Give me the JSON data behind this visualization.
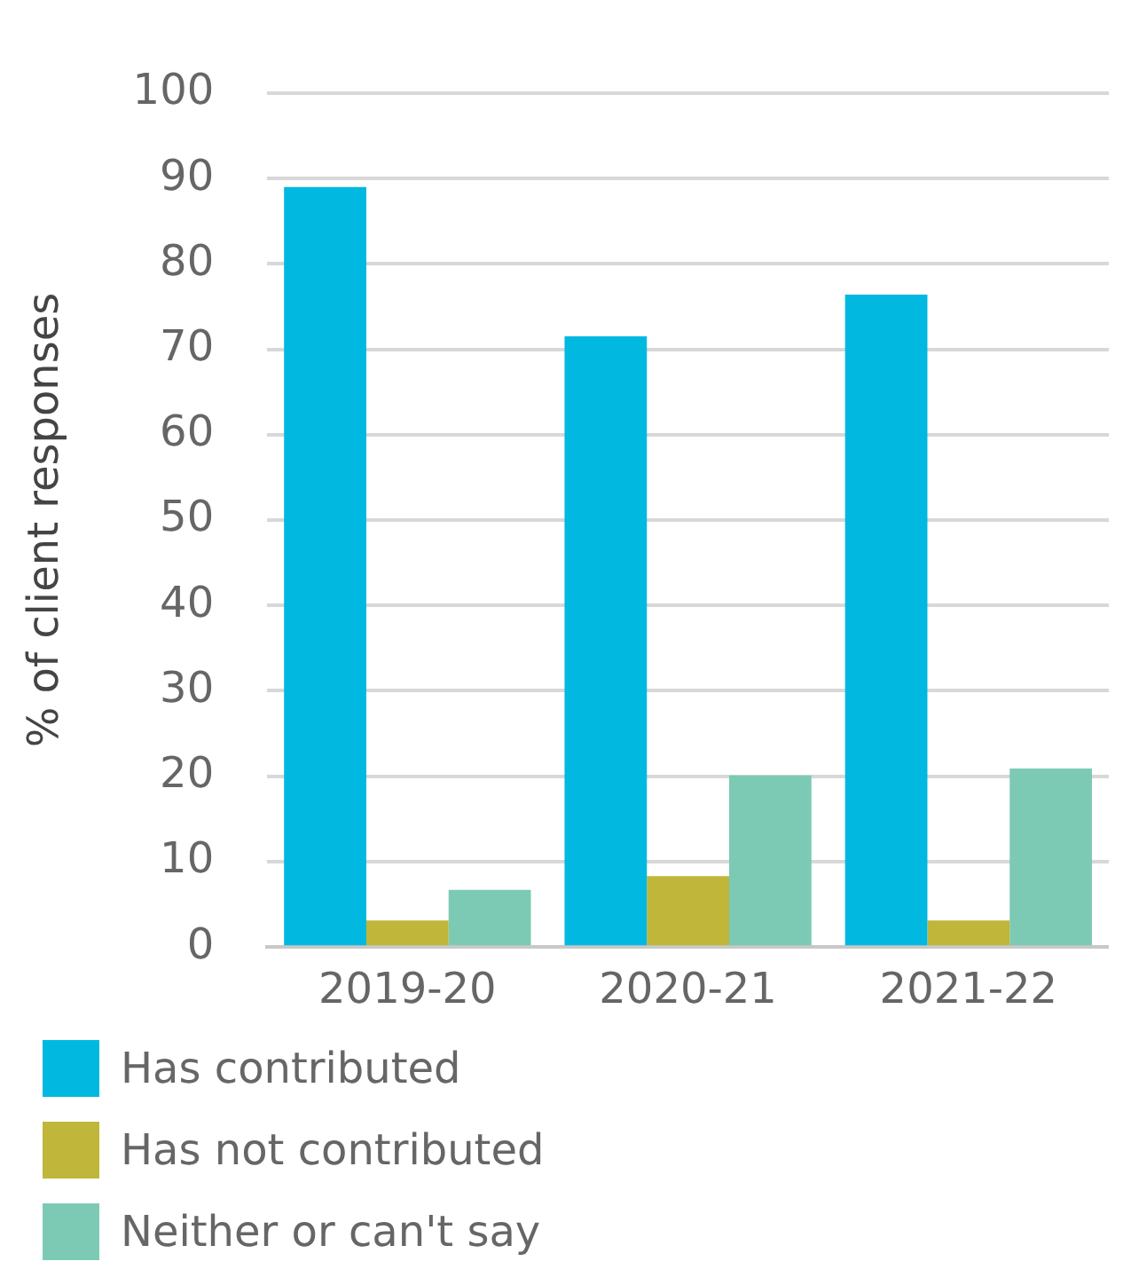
{
  "chart_data": {
    "type": "bar",
    "ylabel": "% of client responses",
    "categories": [
      "2019-20",
      "2020-21",
      "2021-22"
    ],
    "series": [
      {
        "name": "Has contributed",
        "color": "#00b8e0",
        "values": [
          89,
          71.5,
          76.4
        ]
      },
      {
        "name": "Has not contributed",
        "color": "#bfb63a",
        "values": [
          3.1,
          8.3,
          3.1
        ]
      },
      {
        "name": "Neither or can't say",
        "color": "#7ccab4",
        "values": [
          6.7,
          20.1,
          20.9
        ]
      }
    ],
    "ylim": [
      0,
      100
    ],
    "yticks": [
      0,
      10,
      20,
      30,
      40,
      50,
      60,
      70,
      80,
      90,
      100
    ],
    "grid": "y",
    "legend": "bottom left"
  }
}
